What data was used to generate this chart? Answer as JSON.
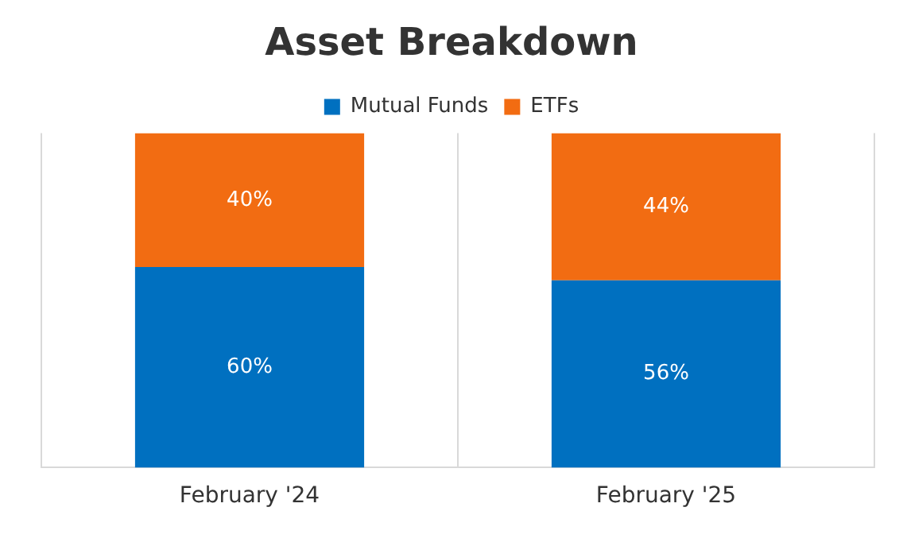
{
  "chart_data": {
    "type": "bar",
    "title": "Asset Breakdown",
    "categories": [
      "February '24",
      "February '25"
    ],
    "stacked": true,
    "ylim": [
      0,
      100
    ],
    "grid": "x",
    "legend": "top",
    "series": [
      {
        "name": "Mutual Funds",
        "color": "#0070c0",
        "values": [
          60,
          56
        ],
        "value_labels": [
          "60%",
          "56%"
        ]
      },
      {
        "name": "ETFs",
        "color": "#f26c12",
        "values": [
          40,
          44
        ],
        "value_labels": [
          "40%",
          "44%"
        ]
      }
    ]
  }
}
